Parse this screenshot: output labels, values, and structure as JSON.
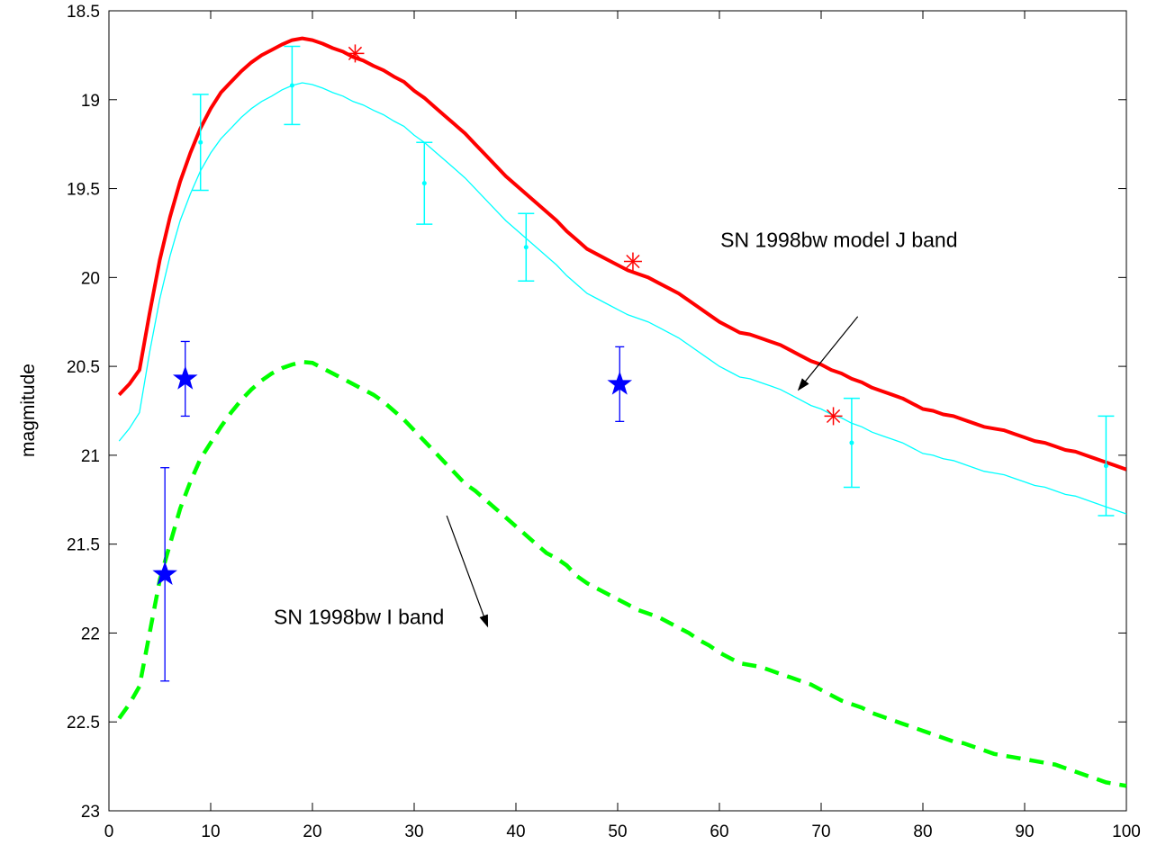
{
  "chart_data": {
    "type": "line",
    "title": "",
    "xlabel": "",
    "ylabel": "magmitude",
    "xlim": [
      0,
      100
    ],
    "ylim": [
      18.5,
      23
    ],
    "y_reversed": true,
    "grid": false,
    "x_ticks": [
      "0",
      "10",
      "20",
      "30",
      "40",
      "50",
      "60",
      "70",
      "80",
      "90",
      "100"
    ],
    "y_ticks": [
      "18.5",
      "19",
      "19.5",
      "20",
      "20.5",
      "21",
      "21.5",
      "22",
      "22.5",
      "23"
    ],
    "colors": {
      "j_model": "#ff0000",
      "cyan": "#00ffff",
      "i_band": "#00ff00",
      "blue": "#0000ff",
      "red_star": "#ff0000",
      "arrow": "#000000"
    },
    "series": [
      {
        "style": "thick-red-solid",
        "x": [
          1,
          2,
          3,
          4,
          5,
          6,
          7,
          8,
          9,
          10,
          11,
          12,
          13,
          14,
          15,
          16,
          17,
          18,
          19,
          20,
          21,
          22,
          23,
          24,
          25,
          26,
          27,
          28,
          29,
          30,
          31,
          32,
          33,
          34,
          35,
          36,
          37,
          38,
          39,
          40,
          41,
          42,
          43,
          44,
          45,
          46,
          47,
          48,
          49,
          50,
          51,
          52,
          53,
          54,
          55,
          56,
          57,
          58,
          59,
          60,
          61,
          62,
          63,
          64,
          65,
          66,
          67,
          68,
          69,
          70,
          71,
          72,
          73,
          74,
          75,
          76,
          77,
          78,
          79,
          80,
          81,
          82,
          83,
          84,
          85,
          86,
          87,
          88,
          89,
          90,
          91,
          92,
          93,
          94,
          95,
          96,
          97,
          98,
          99,
          100
        ],
        "y": [
          20.66,
          20.6,
          20.52,
          20.2,
          19.9,
          19.66,
          19.46,
          19.3,
          19.16,
          19.05,
          18.96,
          18.9,
          18.84,
          18.79,
          18.75,
          18.72,
          18.69,
          18.665,
          18.655,
          18.665,
          18.685,
          18.71,
          18.73,
          18.76,
          18.78,
          18.81,
          18.835,
          18.87,
          18.9,
          18.95,
          18.99,
          19.04,
          19.09,
          19.14,
          19.19,
          19.25,
          19.31,
          19.37,
          19.43,
          19.48,
          19.53,
          19.58,
          19.63,
          19.68,
          19.74,
          19.79,
          19.84,
          19.87,
          19.9,
          19.93,
          19.96,
          19.98,
          20.0,
          20.03,
          20.06,
          20.09,
          20.13,
          20.17,
          20.21,
          20.25,
          20.28,
          20.31,
          20.32,
          20.34,
          20.36,
          20.38,
          20.41,
          20.44,
          20.47,
          20.49,
          20.52,
          20.54,
          20.57,
          20.59,
          20.62,
          20.64,
          20.66,
          20.68,
          20.71,
          20.74,
          20.75,
          20.77,
          20.78,
          20.8,
          20.82,
          20.84,
          20.85,
          20.86,
          20.88,
          20.9,
          20.92,
          20.93,
          20.95,
          20.97,
          20.98,
          21.0,
          21.02,
          21.04,
          21.06,
          21.08
        ]
      },
      {
        "style": "thin-cyan-solid",
        "x": [
          1,
          2,
          3,
          4,
          5,
          6,
          7,
          8,
          9,
          10,
          11,
          12,
          13,
          14,
          15,
          16,
          17,
          18,
          19,
          20,
          21,
          22,
          23,
          24,
          25,
          26,
          27,
          28,
          29,
          30,
          31,
          32,
          33,
          34,
          35,
          36,
          37,
          38,
          39,
          40,
          41,
          42,
          43,
          44,
          45,
          46,
          47,
          48,
          49,
          50,
          51,
          52,
          53,
          54,
          55,
          56,
          57,
          58,
          59,
          60,
          61,
          62,
          63,
          64,
          65,
          66,
          67,
          68,
          69,
          70,
          71,
          72,
          73,
          74,
          75,
          76,
          77,
          78,
          79,
          80,
          81,
          82,
          83,
          84,
          85,
          86,
          87,
          88,
          89,
          90,
          91,
          92,
          93,
          94,
          95,
          96,
          97,
          98,
          99,
          100
        ],
        "y": [
          20.92,
          20.85,
          20.76,
          20.42,
          20.12,
          19.88,
          19.68,
          19.53,
          19.4,
          19.3,
          19.22,
          19.16,
          19.1,
          19.05,
          19.01,
          18.98,
          18.945,
          18.92,
          18.905,
          18.915,
          18.935,
          18.96,
          18.98,
          19.01,
          19.03,
          19.06,
          19.085,
          19.12,
          19.15,
          19.2,
          19.24,
          19.29,
          19.34,
          19.39,
          19.44,
          19.5,
          19.56,
          19.62,
          19.68,
          19.73,
          19.78,
          19.83,
          19.88,
          19.93,
          19.99,
          20.04,
          20.09,
          20.12,
          20.15,
          20.18,
          20.21,
          20.23,
          20.25,
          20.28,
          20.31,
          20.34,
          20.38,
          20.42,
          20.46,
          20.5,
          20.53,
          20.56,
          20.57,
          20.59,
          20.61,
          20.63,
          20.66,
          20.69,
          20.72,
          20.74,
          20.77,
          20.79,
          20.82,
          20.84,
          20.87,
          20.89,
          20.91,
          20.93,
          20.96,
          20.99,
          21.0,
          21.02,
          21.03,
          21.05,
          21.07,
          21.09,
          21.1,
          21.11,
          21.13,
          21.15,
          21.17,
          21.18,
          21.2,
          21.22,
          21.23,
          21.25,
          21.27,
          21.29,
          21.31,
          21.33
        ]
      },
      {
        "style": "thick-green-dashed",
        "x": [
          1,
          2,
          3,
          4,
          5,
          6,
          7,
          8,
          9,
          10,
          11,
          12,
          13,
          14,
          15,
          16,
          17,
          18,
          19,
          20,
          21,
          22,
          23,
          24,
          25,
          26,
          27,
          28,
          29,
          30,
          31,
          32,
          33,
          34,
          35,
          36,
          37,
          38,
          39,
          40,
          41,
          42,
          43,
          44,
          45,
          46,
          47,
          48,
          49,
          50,
          51,
          52,
          53,
          54,
          55,
          56,
          57,
          58,
          59,
          60,
          61,
          62,
          63,
          64,
          65,
          66,
          67,
          68,
          69,
          70,
          71,
          72,
          73,
          74,
          75,
          76,
          77,
          78,
          79,
          80,
          81,
          82,
          83,
          84,
          85,
          86,
          87,
          88,
          89,
          90,
          91,
          92,
          93,
          94,
          95,
          96,
          97,
          98,
          99,
          100
        ],
        "y": [
          22.48,
          22.4,
          22.3,
          22.0,
          21.7,
          21.5,
          21.3,
          21.15,
          21.02,
          20.93,
          20.84,
          20.76,
          20.69,
          20.63,
          20.58,
          20.54,
          20.51,
          20.49,
          20.475,
          20.48,
          20.51,
          20.54,
          20.57,
          20.6,
          20.63,
          20.66,
          20.7,
          20.75,
          20.8,
          20.86,
          20.92,
          20.98,
          21.04,
          21.1,
          21.16,
          21.2,
          21.25,
          21.3,
          21.35,
          21.4,
          21.45,
          21.5,
          21.55,
          21.58,
          21.62,
          21.68,
          21.72,
          21.75,
          21.78,
          21.81,
          21.84,
          21.87,
          21.89,
          21.91,
          21.94,
          21.97,
          22.0,
          22.04,
          22.07,
          22.11,
          22.14,
          22.17,
          22.18,
          22.19,
          22.21,
          22.23,
          22.25,
          22.27,
          22.29,
          22.32,
          22.35,
          22.38,
          22.4,
          22.42,
          22.45,
          22.47,
          22.49,
          22.51,
          22.53,
          22.55,
          22.57,
          22.59,
          22.61,
          22.62,
          22.64,
          22.66,
          22.68,
          22.69,
          22.7,
          22.71,
          22.72,
          22.73,
          22.74,
          22.76,
          22.78,
          22.8,
          22.82,
          22.84,
          22.85,
          22.86
        ]
      },
      {
        "style": "cyan-errorbar-points",
        "x": [
          9,
          18,
          31,
          41,
          73,
          98
        ],
        "y": [
          19.24,
          18.92,
          19.47,
          19.83,
          20.93,
          21.06
        ],
        "err": [
          0.27,
          0.22,
          0.23,
          0.19,
          0.25,
          0.28
        ]
      },
      {
        "style": "blue-star-errorbar",
        "x": [
          5.5,
          7.5,
          50.2
        ],
        "y": [
          21.67,
          20.57,
          20.6
        ],
        "err": [
          0.6,
          0.21,
          0.21
        ]
      },
      {
        "style": "red-asterisk",
        "x": [
          24.2,
          51.5,
          71.2
        ],
        "y": [
          18.74,
          19.91,
          20.78
        ]
      }
    ],
    "annotations": [
      {
        "text": "SN 1998bw model J band",
        "x": 60.1,
        "y": 19.83,
        "arrow_from": [
          73.6,
          20.22
        ],
        "arrow_to": [
          67.8,
          20.63
        ]
      },
      {
        "text": "SN 1998bw I band",
        "x": 16.2,
        "y": 21.95,
        "arrow_from": [
          33.2,
          21.34
        ],
        "arrow_to": [
          37.2,
          21.96
        ]
      }
    ]
  }
}
